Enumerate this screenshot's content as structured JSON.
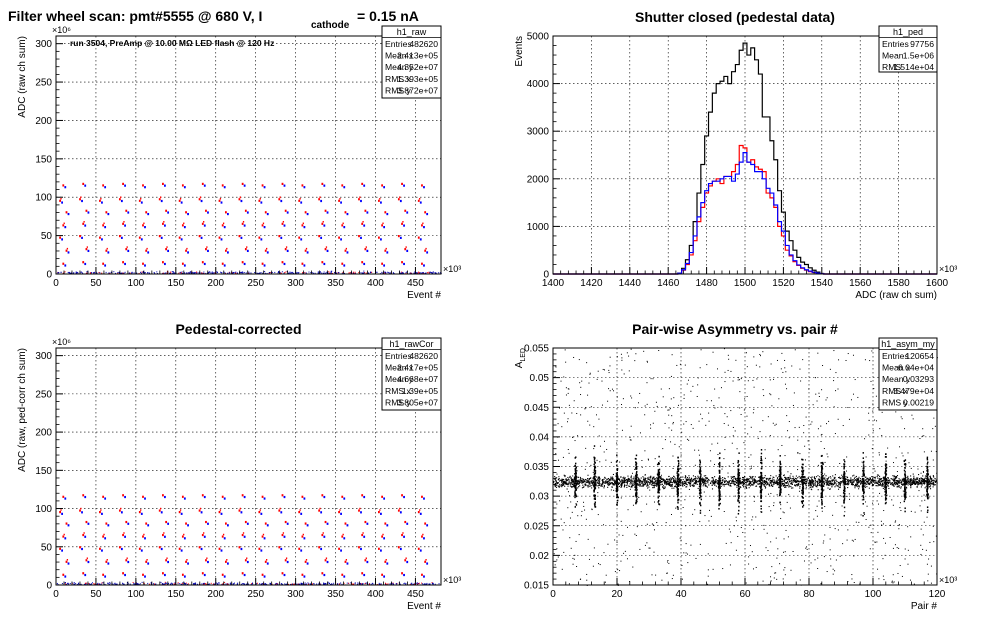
{
  "chart_data": [
    {
      "id": "p1",
      "type": "scatter",
      "title": "Filter wheel scan: pmt#5555 @   680 V, I",
      "title_sub": "cathode",
      "title_tail": "= 0.15 nA",
      "subtitle": "run 3504, PreAmp @ 10.00 MΩ LED flash @  120 Hz",
      "xlabel": "Event #",
      "ylabel": "ADC (raw ch sum)",
      "x_exp": "×10³",
      "y_exp": "×10⁶",
      "xlim": [
        0,
        482
      ],
      "ylim": [
        0,
        310
      ],
      "xticks": [
        0,
        50,
        100,
        150,
        200,
        250,
        300,
        350,
        400,
        450
      ],
      "yticks": [
        0,
        50,
        100,
        150,
        200,
        250,
        300
      ],
      "grid": true,
      "colors": {
        "series_a": "#ff0000",
        "series_b": "#0000ff",
        "baseline": "#0000aa"
      },
      "levels": [
        0,
        13,
        30,
        47,
        63,
        80,
        95,
        115
      ],
      "stats": {
        "name": "h1_raw",
        "rows": [
          [
            "Entries",
            "482620"
          ],
          [
            "Mean x",
            "2.413e+05"
          ],
          [
            "Mean y",
            "4.352e+07"
          ],
          [
            "RMS x",
            "1.393e+05"
          ],
          [
            "RMS y",
            "3.872e+07"
          ]
        ]
      }
    },
    {
      "id": "p2",
      "type": "line",
      "title": "Shutter closed (pedestal data)",
      "xlabel": "ADC (raw ch sum)",
      "ylabel": "Events",
      "x_exp": "×10³",
      "xlim": [
        1400,
        1600
      ],
      "ylim": [
        0,
        5000
      ],
      "xticks": [
        1400,
        1420,
        1440,
        1460,
        1480,
        1500,
        1520,
        1540,
        1560,
        1580,
        1600
      ],
      "yticks": [
        0,
        1000,
        2000,
        3000,
        4000,
        5000
      ],
      "grid": true,
      "x": [
        1466,
        1468,
        1470,
        1472,
        1474,
        1476,
        1478,
        1480,
        1482,
        1484,
        1486,
        1488,
        1490,
        1492,
        1494,
        1496,
        1498,
        1500,
        1502,
        1504,
        1506,
        1508,
        1510,
        1512,
        1514,
        1516,
        1518,
        1520,
        1522,
        1524,
        1526,
        1528,
        1530,
        1532,
        1534,
        1536,
        1538,
        1540
      ],
      "series": [
        {
          "color": "#000000",
          "values": [
            20,
            120,
            300,
            600,
            1100,
            1700,
            2300,
            2900,
            3400,
            3800,
            4000,
            4050,
            4150,
            4000,
            4250,
            4400,
            4700,
            4850,
            4600,
            4750,
            4500,
            4200,
            3300,
            3300,
            2800,
            2400,
            1750,
            1300,
            900,
            700,
            500,
            350,
            250,
            200,
            130,
            80,
            40,
            10
          ]
        },
        {
          "color": "#ff0000",
          "values": [
            10,
            80,
            200,
            400,
            700,
            1100,
            1400,
            1700,
            1850,
            1950,
            2000,
            1900,
            2050,
            2050,
            2150,
            2300,
            2700,
            2650,
            2350,
            2400,
            2250,
            2200,
            2150,
            1700,
            1600,
            1400,
            1000,
            800,
            500,
            380,
            260,
            180,
            120,
            80,
            50,
            30,
            15,
            5
          ]
        },
        {
          "color": "#0000ff",
          "values": [
            15,
            90,
            220,
            450,
            800,
            1200,
            1500,
            1750,
            1900,
            1950,
            1950,
            2000,
            2050,
            2050,
            1950,
            2100,
            2350,
            2550,
            2350,
            2300,
            2150,
            2150,
            2000,
            1800,
            1700,
            1450,
            1100,
            900,
            600,
            400,
            280,
            190,
            130,
            90,
            60,
            35,
            20,
            5
          ]
        }
      ],
      "stats": {
        "name": "h1_ped",
        "rows": [
          [
            "Entries",
            "97756"
          ],
          [
            "Mean",
            "1.5e+06"
          ],
          [
            "RMS",
            "1.514e+04"
          ]
        ]
      }
    },
    {
      "id": "p3",
      "type": "scatter",
      "title": "Pedestal-corrected",
      "xlabel": "Event #",
      "ylabel": "ADC (raw, ped-corr ch sum)",
      "x_exp": "×10³",
      "y_exp": "×10⁶",
      "xlim": [
        0,
        482
      ],
      "ylim": [
        0,
        310
      ],
      "xticks": [
        0,
        50,
        100,
        150,
        200,
        250,
        300,
        350,
        400,
        450
      ],
      "yticks": [
        0,
        50,
        100,
        150,
        200,
        250,
        300
      ],
      "grid": true,
      "colors": {
        "series_a": "#ff0000",
        "series_b": "#0000ff",
        "baseline": "#0000aa"
      },
      "levels": [
        0,
        13,
        30,
        47,
        63,
        80,
        95,
        115
      ],
      "stats": {
        "name": "h1_rawCor",
        "rows": [
          [
            "Entries",
            "482620"
          ],
          [
            "Mean x",
            "2.417e+05"
          ],
          [
            "Mean y",
            "4.668e+07"
          ],
          [
            "RMS x",
            "1.39e+05"
          ],
          [
            "RMS y",
            "3.805e+07"
          ]
        ]
      }
    },
    {
      "id": "p4",
      "type": "scatter",
      "title": "Pair-wise Asymmetry vs. pair #",
      "xlabel": "Pair #",
      "ylabel": "A",
      "ylabel_sub": "LED",
      "x_exp": "×10³",
      "xlim": [
        0,
        120
      ],
      "ylim": [
        0.015,
        0.055
      ],
      "xticks": [
        0,
        20,
        40,
        60,
        80,
        100,
        120
      ],
      "yticks": [
        0.015,
        0.02,
        0.025,
        0.03,
        0.035,
        0.04,
        0.045,
        0.05,
        0.055
      ],
      "grid": true,
      "band_center": 0.0325,
      "spike_x": [
        7,
        13,
        20,
        26,
        33,
        39,
        46,
        52,
        58,
        65,
        71,
        78,
        84,
        91,
        97,
        104,
        110,
        117
      ],
      "stats": {
        "name": "h1_asym_my",
        "rows": [
          [
            "Entries",
            "120654"
          ],
          [
            "Mean x",
            "6.04e+04"
          ],
          [
            "Mean y",
            "0.03293"
          ],
          [
            "RMS x",
            "3.479e+04"
          ],
          [
            "RMS y",
            "0.00219"
          ]
        ]
      }
    }
  ]
}
